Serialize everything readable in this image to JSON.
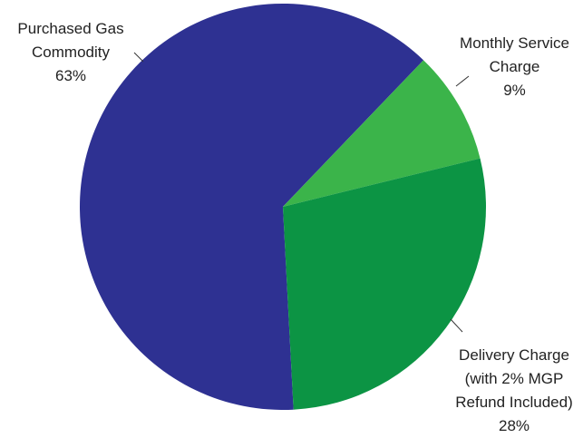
{
  "chart_data": {
    "type": "pie",
    "categories": [
      "Purchased Gas Commodity",
      "Monthly Service Charge",
      "Delivery Charge (with 2% MGP Refund Included)"
    ],
    "values": [
      63,
      9,
      28
    ],
    "value_labels": [
      "63%",
      "9%",
      "28%"
    ],
    "colors": [
      "#2e3192",
      "#3bb44a",
      "#0c9444"
    ]
  }
}
